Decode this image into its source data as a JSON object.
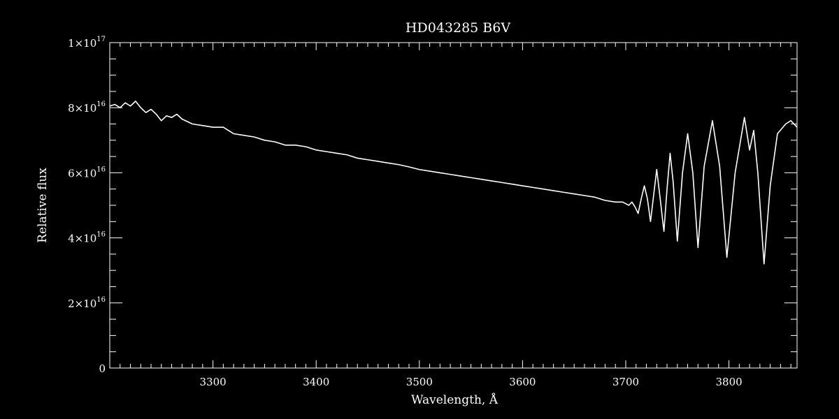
{
  "chart_data": {
    "type": "line",
    "title": "HD043285   B6V",
    "xlabel": "Wavelength, Å",
    "ylabel": "Relative flux",
    "xlim": [
      3200,
      3866
    ],
    "ylim": [
      0,
      1e+17
    ],
    "grid": false,
    "x_ticks": [
      {
        "value": 3300,
        "label": "3300"
      },
      {
        "value": 3400,
        "label": "3400"
      },
      {
        "value": 3500,
        "label": "3500"
      },
      {
        "value": 3600,
        "label": "3600"
      },
      {
        "value": 3700,
        "label": "3700"
      },
      {
        "value": 3800,
        "label": "3800"
      }
    ],
    "y_ticks": [
      {
        "value": 0,
        "mantissa": "0",
        "times": "",
        "base": "",
        "exponent": ""
      },
      {
        "value": 2e+16,
        "mantissa": "2",
        "times": "×",
        "base": "10",
        "exponent": "16"
      },
      {
        "value": 4e+16,
        "mantissa": "4",
        "times": "×",
        "base": "10",
        "exponent": "16"
      },
      {
        "value": 6e+16,
        "mantissa": "6",
        "times": "×",
        "base": "10",
        "exponent": "16"
      },
      {
        "value": 8e+16,
        "mantissa": "8",
        "times": "×",
        "base": "10",
        "exponent": "16"
      },
      {
        "value": 1e+17,
        "mantissa": "1",
        "times": "×",
        "base": "10",
        "exponent": "17"
      }
    ],
    "x_minor_step": 10,
    "y_minor_step": 5000000000000000.0,
    "series": [
      {
        "values": [
          [
            3200,
            8.05e+16
          ],
          [
            3205,
            8.1e+16
          ],
          [
            3210,
            8e+16
          ],
          [
            3215,
            8.15e+16
          ],
          [
            3220,
            8.05e+16
          ],
          [
            3225,
            8.2e+16
          ],
          [
            3230,
            8e+16
          ],
          [
            3235,
            7.85e+16
          ],
          [
            3240,
            7.95e+16
          ],
          [
            3245,
            7.8e+16
          ],
          [
            3250,
            7.6e+16
          ],
          [
            3255,
            7.75e+16
          ],
          [
            3260,
            7.7e+16
          ],
          [
            3265,
            7.8e+16
          ],
          [
            3270,
            7.65e+16
          ],
          [
            3280,
            7.5e+16
          ],
          [
            3290,
            7.45e+16
          ],
          [
            3300,
            7.4e+16
          ],
          [
            3310,
            7.4e+16
          ],
          [
            3320,
            7.2e+16
          ],
          [
            3330,
            7.15e+16
          ],
          [
            3340,
            7.1e+16
          ],
          [
            3350,
            7e+16
          ],
          [
            3360,
            6.95e+16
          ],
          [
            3370,
            6.85e+16
          ],
          [
            3380,
            6.85e+16
          ],
          [
            3390,
            6.8e+16
          ],
          [
            3400,
            6.7e+16
          ],
          [
            3410,
            6.65e+16
          ],
          [
            3420,
            6.6e+16
          ],
          [
            3430,
            6.55e+16
          ],
          [
            3440,
            6.45e+16
          ],
          [
            3450,
            6.4e+16
          ],
          [
            3460,
            6.35e+16
          ],
          [
            3470,
            6.3e+16
          ],
          [
            3480,
            6.25e+16
          ],
          [
            3490,
            6.18e+16
          ],
          [
            3500,
            6.1e+16
          ],
          [
            3510,
            6.05e+16
          ],
          [
            3520,
            6e+16
          ],
          [
            3530,
            5.95e+16
          ],
          [
            3540,
            5.9e+16
          ],
          [
            3550,
            5.85e+16
          ],
          [
            3560,
            5.8e+16
          ],
          [
            3570,
            5.75e+16
          ],
          [
            3580,
            5.7e+16
          ],
          [
            3590,
            5.65e+16
          ],
          [
            3600,
            5.6e+16
          ],
          [
            3610,
            5.55e+16
          ],
          [
            3620,
            5.5e+16
          ],
          [
            3630,
            5.45e+16
          ],
          [
            3640,
            5.4e+16
          ],
          [
            3650,
            5.35e+16
          ],
          [
            3660,
            5.3e+16
          ],
          [
            3670,
            5.25e+16
          ],
          [
            3680,
            5.15e+16
          ],
          [
            3690,
            5.1e+16
          ],
          [
            3697,
            5.1e+16
          ],
          [
            3700,
            5.05e+16
          ],
          [
            3703,
            5e+16
          ],
          [
            3706,
            5.1e+16
          ],
          [
            3709,
            4.95e+16
          ],
          [
            3712,
            4.75e+16
          ],
          [
            3715,
            5.2e+16
          ],
          [
            3718,
            5.6e+16
          ],
          [
            3721,
            5.2e+16
          ],
          [
            3724,
            4.5e+16
          ],
          [
            3727,
            5.3e+16
          ],
          [
            3730,
            6.1e+16
          ],
          [
            3733,
            5.3e+16
          ],
          [
            3737,
            4.2e+16
          ],
          [
            3740,
            5.5e+16
          ],
          [
            3743,
            6.6e+16
          ],
          [
            3746,
            5.7e+16
          ],
          [
            3750,
            3.9e+16
          ],
          [
            3755,
            6e+16
          ],
          [
            3760,
            7.2e+16
          ],
          [
            3765,
            6e+16
          ],
          [
            3770,
            3.7e+16
          ],
          [
            3776,
            6.2e+16
          ],
          [
            3784,
            7.6e+16
          ],
          [
            3791,
            6.2e+16
          ],
          [
            3798,
            3.4e+16
          ],
          [
            3806,
            6e+16
          ],
          [
            3815,
            7.7e+16
          ],
          [
            3820,
            6.7e+16
          ],
          [
            3824,
            7.3e+16
          ],
          [
            3828,
            6e+16
          ],
          [
            3834,
            3.2e+16
          ],
          [
            3840,
            5.6e+16
          ],
          [
            3847,
            7.2e+16
          ],
          [
            3855,
            7.5e+16
          ],
          [
            3860,
            7.6e+16
          ],
          [
            3866,
            7.4e+16
          ]
        ]
      }
    ]
  }
}
